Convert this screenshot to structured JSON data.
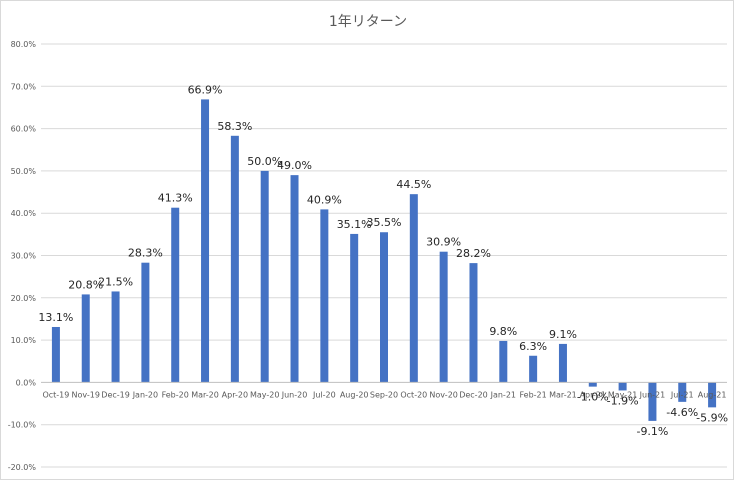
{
  "chart_data": {
    "type": "bar",
    "title": "1年リターン",
    "xlabel": "",
    "ylabel": "",
    "categories": [
      "Oct-19",
      "Nov-19",
      "Dec-19",
      "Jan-20",
      "Feb-20",
      "Mar-20",
      "Apr-20",
      "May-20",
      "Jun-20",
      "Jul-20",
      "Aug-20",
      "Sep-20",
      "Oct-20",
      "Nov-20",
      "Dec-20",
      "Jan-21",
      "Feb-21",
      "Mar-21",
      "Apr-21",
      "May-21",
      "Jun-21",
      "Jul-21",
      "Aug-21"
    ],
    "values": [
      13.1,
      20.8,
      21.5,
      28.3,
      41.3,
      66.9,
      58.3,
      50.0,
      49.0,
      40.9,
      35.1,
      35.5,
      44.5,
      30.9,
      28.2,
      9.8,
      6.3,
      9.1,
      -1.0,
      -1.9,
      -9.1,
      -4.6,
      -5.9
    ],
    "data_labels": [
      "13.1%",
      "20.8%",
      "21.5%",
      "28.3%",
      "41.3%",
      "66.9%",
      "58.3%",
      "50.0%",
      "49.0%",
      "40.9%",
      "35.1%",
      "35.5%",
      "44.5%",
      "30.9%",
      "28.2%",
      "9.8%",
      "6.3%",
      "9.1%",
      "-1.0%",
      "-1.9%",
      "-9.1%",
      "-4.6%",
      "-5.9%"
    ],
    "ylim": [
      -20,
      80
    ],
    "y_ticks": [
      80,
      70,
      60,
      50,
      40,
      30,
      20,
      10,
      0,
      -10,
      -20
    ],
    "y_tick_labels": [
      "80.0%",
      "70.0%",
      "60.0%",
      "50.0%",
      "40.0%",
      "30.0%",
      "20.0%",
      "10.0%",
      "0.0%",
      "-10.0%",
      "-20.0%"
    ],
    "grid": true,
    "legend": "none",
    "bar_color": "#4472c4",
    "grid_color": "#d9d9d9",
    "axis_color": "#bfbfbf"
  }
}
